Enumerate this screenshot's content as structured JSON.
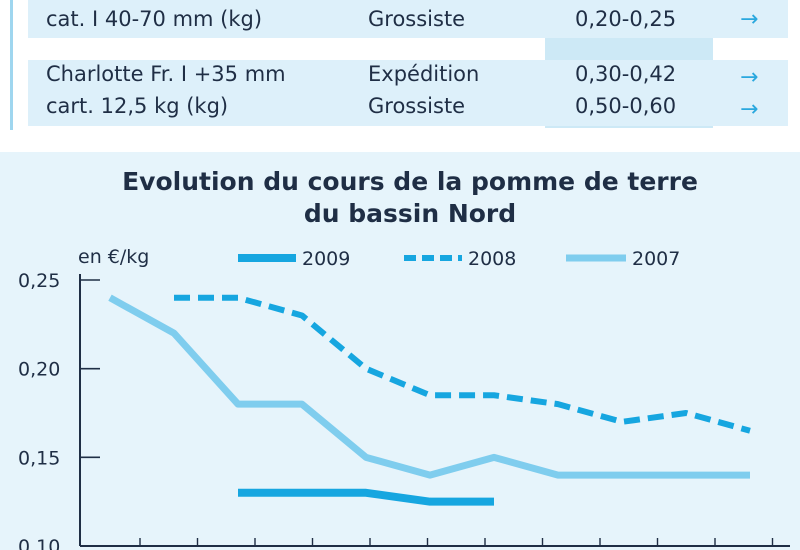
{
  "table": {
    "rows": [
      {
        "lines": [
          {
            "label": "cat. I 40-70 mm (kg)",
            "stage": "Grossiste",
            "price": "0,20-0,25",
            "trend": "→"
          }
        ]
      },
      {
        "lines": [
          {
            "label": "Charlotte Fr. I +35 mm",
            "stage": "Expédition",
            "price": "0,30-0,42",
            "trend": "→"
          },
          {
            "label": "cart. 12,5 kg (kg)",
            "stage": "Grossiste",
            "price": "0,50-0,60",
            "trend": "→"
          }
        ]
      }
    ]
  },
  "chart_data": {
    "type": "line",
    "title_lines": [
      "Evolution du cours de la pomme de terre",
      "du bassin Nord"
    ],
    "unit_label": "en €/kg",
    "y_ticks": [
      "0,25",
      "0,20",
      "0,15",
      "0,10"
    ],
    "ylim": [
      0.1,
      0.25
    ],
    "x_count": 12,
    "legend_placement": "top",
    "series": [
      {
        "name": "2009",
        "style": "solid-thick",
        "color": "#16a6e0",
        "values": [
          null,
          null,
          0.13,
          0.13,
          0.13,
          0.125,
          0.125,
          null,
          null,
          null,
          null,
          null
        ]
      },
      {
        "name": "2008",
        "style": "dashed",
        "color": "#16a6e0",
        "values": [
          null,
          0.24,
          0.24,
          0.23,
          0.2,
          0.185,
          0.185,
          0.18,
          0.17,
          0.175,
          0.165,
          null
        ]
      },
      {
        "name": "2007",
        "style": "solid-light",
        "color": "#7fcdee",
        "values": [
          0.24,
          0.22,
          0.18,
          0.18,
          0.15,
          0.14,
          0.15,
          0.14,
          0.14,
          0.14,
          0.14,
          null
        ]
      }
    ]
  }
}
